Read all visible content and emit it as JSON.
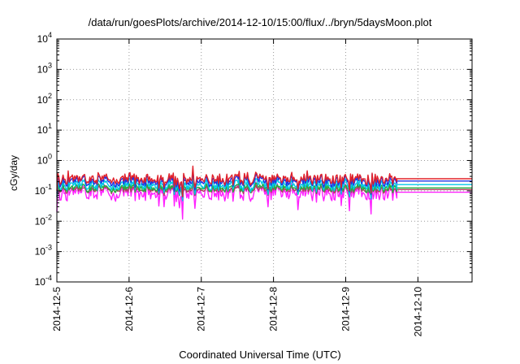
{
  "chart_data": {
    "type": "line",
    "title": "/data/run/goesPlots/archive/2014-12-10/15:00/flux/../bryn/5daysMoon.plot",
    "xlabel": "Coordinated Universal Time (UTC)",
    "ylabel": "cGy/day",
    "yscale": "log",
    "ylim": [
      0.0001,
      10000
    ],
    "xlim": [
      "2014-12-05",
      "2014-12-10 18:00"
    ],
    "yticks": [
      {
        "base": "10",
        "exp": "-4"
      },
      {
        "base": "10",
        "exp": "-3"
      },
      {
        "base": "10",
        "exp": "-2"
      },
      {
        "base": "10",
        "exp": "-1"
      },
      {
        "base": "10",
        "exp": "0"
      },
      {
        "base": "10",
        "exp": "1"
      },
      {
        "base": "10",
        "exp": "2"
      },
      {
        "base": "10",
        "exp": "3"
      },
      {
        "base": "10",
        "exp": "4"
      }
    ],
    "xticks": [
      "2014-12-5",
      "2014-12-6",
      "2014-12-7",
      "2014-12-8",
      "2014-12-9",
      "2014-12-10"
    ],
    "grid": true,
    "legend": "none",
    "data_end": "2014-12-09 17:00",
    "series": [
      {
        "color": "#e0202a",
        "level": 0.25,
        "spread": 0.14
      },
      {
        "color": "#2030e0",
        "level": 0.21,
        "spread": 0.14
      },
      {
        "color": "#00c8e8",
        "level": 0.16,
        "spread": 0.14
      },
      {
        "color": "#20b040",
        "level": 0.125,
        "spread": 0.1
      },
      {
        "color": "#b04060",
        "level": 0.11,
        "spread": 0.08
      },
      {
        "color": "#ff20ff",
        "level": 0.09,
        "spread": 0.22
      }
    ]
  }
}
